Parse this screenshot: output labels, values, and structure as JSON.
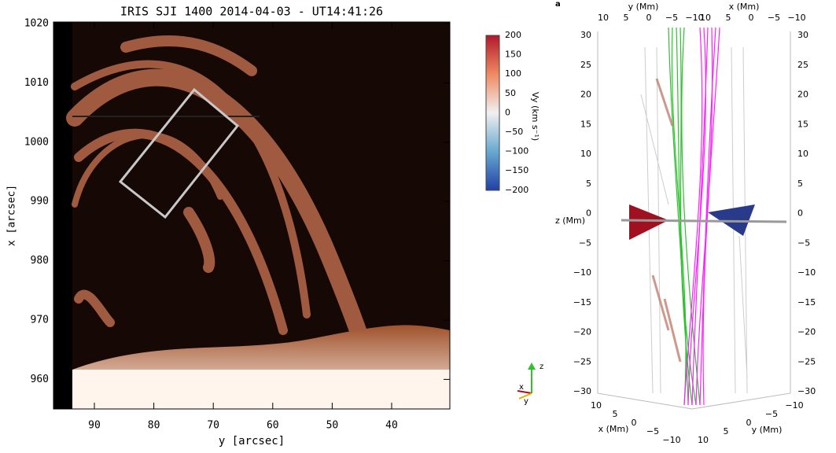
{
  "left_panel": {
    "title": "IRIS SJI 1400   2014-04-03 - UT14:41:26",
    "x_label": "y [arcsec]",
    "y_label": "x [arcsec]",
    "x_ticks": [
      "90",
      "80",
      "70",
      "60",
      "50",
      "40"
    ],
    "y_ticks": [
      "1020",
      "1010",
      "1000",
      "990",
      "980",
      "970",
      "960"
    ]
  },
  "colorbar": {
    "label": "Vy (km s⁻¹)",
    "ticks": [
      "200",
      "150",
      "100",
      "50",
      "0",
      "−50",
      "−100",
      "−150",
      "−200"
    ]
  },
  "right_panel": {
    "panel_label": "a",
    "top_y_label": "y (Mm)",
    "top_x_label": "x (Mm)",
    "top_y_ticks": [
      "10",
      "5",
      "0",
      "−5",
      "−10"
    ],
    "top_x_ticks": [
      "10",
      "5",
      "0",
      "−5",
      "−10"
    ],
    "z_label": "z (Mm)",
    "z_ticks_left": [
      "30",
      "25",
      "20",
      "15",
      "10",
      "5",
      "0",
      "−5",
      "−10",
      "−15",
      "−20",
      "−25",
      "−30"
    ],
    "z_ticks_right": [
      "30",
      "25",
      "20",
      "15",
      "10",
      "5",
      "0",
      "−5",
      "−10",
      "−15",
      "−20",
      "−25",
      "−30"
    ],
    "bottom_x_label": "x (Mm)",
    "bottom_x_ticks": [
      "10",
      "5",
      "0",
      "−5",
      "−10"
    ],
    "bottom_y_label": "y (Mm)",
    "bottom_y_ticks": [
      "−10",
      "−5",
      "0",
      "5",
      "10"
    ]
  },
  "triad": {
    "z": "z",
    "x": "x",
    "y": "y"
  }
}
